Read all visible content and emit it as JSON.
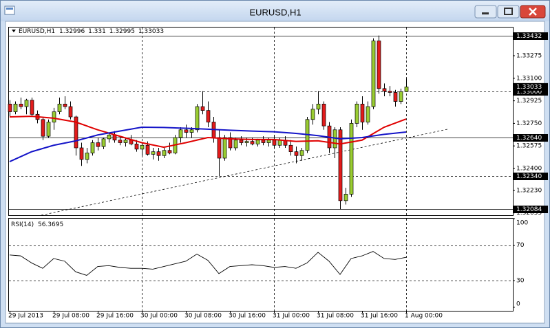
{
  "chart_data": {
    "type": "candlestick",
    "symbol": "EURUSD,H1",
    "categories": [
      "29 Jul 2013",
      null,
      null,
      null,
      null,
      null,
      null,
      null,
      "29 Jul 08:00",
      null,
      null,
      null,
      null,
      null,
      null,
      null,
      "29 Jul 16:00",
      null,
      null,
      null,
      null,
      null,
      null,
      null,
      "30 Jul 00:00",
      null,
      null,
      null,
      null,
      null,
      null,
      null,
      "30 Jul 08:00",
      null,
      null,
      null,
      null,
      null,
      null,
      null,
      "30 Jul 16:00",
      null,
      null,
      null,
      null,
      null,
      null,
      null,
      "31 Jul 00:00",
      null,
      null,
      null,
      null,
      null,
      null,
      null,
      "31 Jul 08:00",
      null,
      null,
      null,
      null,
      null,
      null,
      null,
      "31 Jul 16:00",
      null,
      null,
      null,
      null,
      null,
      null,
      null,
      "1 Aug 00:00"
    ],
    "open": [
      1.329,
      1.3284,
      1.329,
      1.3288,
      1.3293,
      1.3282,
      1.3278,
      1.3265,
      1.3276,
      1.3284,
      1.329,
      1.3288,
      1.328,
      1.3256,
      1.3247,
      1.3252,
      1.326,
      1.3257,
      1.3263,
      1.3266,
      1.3262,
      1.326,
      1.3262,
      1.3259,
      1.3255,
      1.3258,
      1.3251,
      1.3253,
      1.325,
      1.3254,
      1.3252,
      1.3264,
      1.327,
      1.3268,
      1.327,
      1.3288,
      1.3285,
      1.3276,
      1.3264,
      1.3248,
      1.3264,
      1.3256,
      1.3262,
      1.326,
      1.3261,
      1.3259,
      1.3262,
      1.326,
      1.3262,
      1.3258,
      1.3262,
      1.3258,
      1.3253,
      1.325,
      1.3254,
      1.3278,
      1.3286,
      1.329,
      1.3273,
      1.3256,
      1.327,
      1.3215,
      1.322,
      1.3275,
      1.329,
      1.3276,
      1.3288,
      1.3339,
      1.3302,
      1.33,
      1.3299,
      1.3292,
      1.32996
    ],
    "high": [
      1.3293,
      1.3292,
      1.3295,
      1.3294,
      1.3295,
      1.3285,
      1.328,
      1.3278,
      1.3287,
      1.3295,
      1.3296,
      1.3292,
      1.3281,
      1.326,
      1.3256,
      1.3262,
      1.3264,
      1.3264,
      1.3268,
      1.3269,
      1.3265,
      1.3264,
      1.3266,
      1.3262,
      1.326,
      1.3261,
      1.3256,
      1.3256,
      1.3256,
      1.326,
      1.3266,
      1.3272,
      1.3274,
      1.3272,
      1.329,
      1.33,
      1.3292,
      1.328,
      1.327,
      1.3266,
      1.3268,
      1.3264,
      1.3265,
      1.3264,
      1.3264,
      1.3263,
      1.3265,
      1.3264,
      1.3266,
      1.3264,
      1.3265,
      1.3262,
      1.3257,
      1.3256,
      1.328,
      1.329,
      1.33,
      1.3292,
      1.3276,
      1.3272,
      1.3272,
      1.3225,
      1.3278,
      1.3292,
      1.3296,
      1.3292,
      1.3341,
      1.33432,
      1.3306,
      1.3304,
      1.3301,
      1.3302,
      1.331
    ],
    "low": [
      1.328,
      1.3282,
      1.3286,
      1.3282,
      1.328,
      1.3275,
      1.3262,
      1.3264,
      1.327,
      1.3282,
      1.3286,
      1.3278,
      1.325,
      1.3242,
      1.3244,
      1.325,
      1.3254,
      1.3255,
      1.326,
      1.326,
      1.3258,
      1.3257,
      1.3258,
      1.3253,
      1.325,
      1.325,
      1.3247,
      1.3246,
      1.3248,
      1.3251,
      1.3251,
      1.326,
      1.3264,
      1.3264,
      1.3268,
      1.3282,
      1.3272,
      1.326,
      1.3234,
      1.3246,
      1.3254,
      1.3254,
      1.3258,
      1.3257,
      1.3258,
      1.3257,
      1.3258,
      1.3257,
      1.3256,
      1.3256,
      1.3256,
      1.325,
      1.3244,
      1.3246,
      1.3252,
      1.3274,
      1.3282,
      1.327,
      1.3252,
      1.3248,
      1.32084,
      1.3212,
      1.3218,
      1.3272,
      1.327,
      1.3274,
      1.3286,
      1.3298,
      1.3296,
      1.3296,
      1.3288,
      1.329,
      1.32995
    ],
    "close": [
      1.3284,
      1.329,
      1.3288,
      1.3293,
      1.3282,
      1.3278,
      1.3265,
      1.3276,
      1.3284,
      1.329,
      1.3288,
      1.328,
      1.3256,
      1.3247,
      1.3252,
      1.326,
      1.3257,
      1.3263,
      1.3266,
      1.3262,
      1.326,
      1.3262,
      1.3259,
      1.3255,
      1.3258,
      1.3251,
      1.3253,
      1.325,
      1.3254,
      1.3252,
      1.3264,
      1.327,
      1.3268,
      1.327,
      1.3288,
      1.3285,
      1.3276,
      1.3264,
      1.3248,
      1.3264,
      1.3256,
      1.3262,
      1.326,
      1.3261,
      1.3259,
      1.3262,
      1.326,
      1.3262,
      1.3258,
      1.3262,
      1.3258,
      1.3253,
      1.325,
      1.3254,
      1.3278,
      1.3286,
      1.329,
      1.3273,
      1.3256,
      1.327,
      1.3215,
      1.322,
      1.3275,
      1.329,
      1.3276,
      1.3288,
      1.3339,
      1.3302,
      1.33,
      1.3299,
      1.3292,
      1.32996,
      1.33033
    ],
    "up_color": "#9acd32",
    "down_color": "#e31b1b",
    "ylim": [
      1.32037,
      1.33494
    ],
    "yticks": [
      1.33275,
      {
        "value": 1.331,
        "label": "1.33100"
      },
      1.32925,
      {
        "value": 1.3275,
        "label": "1.32750"
      },
      1.32575,
      {
        "value": 1.324,
        "label": "1.32400"
      },
      {
        "value": 1.3223,
        "label": "1.32230"
      },
      1.32055
    ],
    "levels": [
      {
        "value": 1.33432,
        "style": "solid"
      },
      {
        "value": 1.33,
        "label": "1.33000",
        "style": "dashed"
      },
      {
        "value": 1.3264,
        "label": "1.32640",
        "style": "solid"
      },
      {
        "value": 1.3234,
        "label": "1.32340",
        "style": "dashed"
      },
      {
        "value": 1.32084,
        "style": "solid"
      }
    ],
    "xgrid": [
      24,
      48,
      72
    ],
    "moving_averages": [
      {
        "color": "#e00000",
        "x": [
          0,
          4,
          8,
          12,
          16,
          20,
          24,
          28,
          32,
          36,
          40,
          44,
          48,
          52,
          56,
          60,
          64,
          68,
          72
        ],
        "values": [
          1.328,
          1.32805,
          1.3279,
          1.3276,
          1.327,
          1.3265,
          1.326,
          1.32565,
          1.326,
          1.3264,
          1.3263,
          1.32625,
          1.32625,
          1.3261,
          1.32615,
          1.3259,
          1.3262,
          1.3272,
          1.32784
        ]
      },
      {
        "color": "#1414c8",
        "x": [
          0,
          4,
          8,
          12,
          16,
          20,
          24,
          28,
          32,
          36,
          40,
          44,
          48,
          52,
          56,
          60,
          64,
          68,
          72
        ],
        "values": [
          1.32453,
          1.3253,
          1.3258,
          1.32614,
          1.3266,
          1.3269,
          1.3272,
          1.32718,
          1.32712,
          1.32705,
          1.32697,
          1.3269,
          1.32685,
          1.32672,
          1.32655,
          1.3263,
          1.3264,
          1.32665,
          1.32683
        ]
      }
    ],
    "trendline": {
      "x": [
        5.75,
        79.5
      ],
      "y": [
        1.32037,
        1.32704
      ]
    },
    "indicator": {
      "type": "line",
      "name": "RSI(14)",
      "x": [
        0,
        2,
        4,
        6,
        8,
        10,
        12,
        14,
        16,
        18,
        20,
        22,
        24,
        26,
        28,
        30,
        32,
        34,
        36,
        38,
        40,
        42,
        44,
        46,
        48,
        50,
        52,
        54,
        56,
        58,
        60,
        62,
        64,
        66,
        68,
        70,
        72
      ],
      "values": [
        59,
        58,
        50,
        44,
        55,
        52,
        40,
        36,
        46,
        47,
        45,
        44,
        44,
        43,
        46,
        49,
        52,
        60,
        53,
        38,
        46,
        47,
        48,
        47,
        45,
        46,
        44,
        50,
        62,
        52,
        37,
        55,
        58,
        63,
        55,
        54,
        56.3695
      ],
      "ylim": [
        -4,
        100
      ],
      "yticks": [
        100,
        70,
        30,
        0
      ],
      "levels": [
        70,
        30
      ]
    }
  }
}
